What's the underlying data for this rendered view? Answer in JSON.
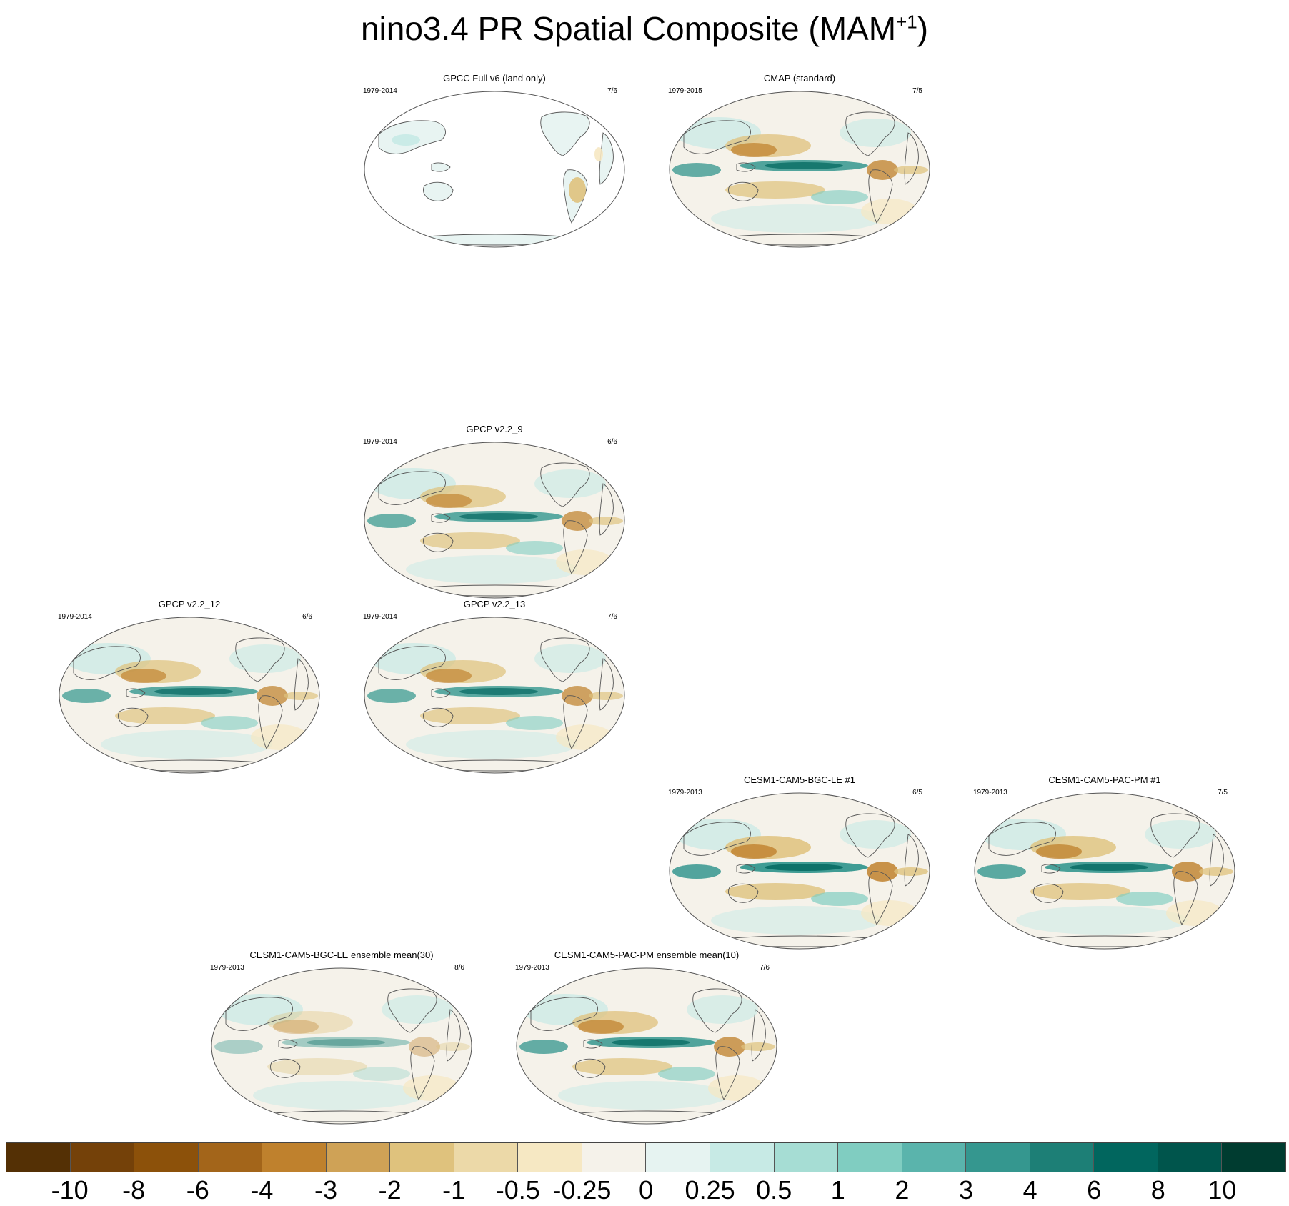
{
  "figure": {
    "title": "nino3.4 PR Spatial Composite (MAM",
    "title_sup": "+1",
    "title_end": ")"
  },
  "panels": [
    {
      "id": "gpcc",
      "title": "GPCC Full v6 (land only)",
      "years": "1979-2014",
      "ratio": "7/6",
      "land_only": true,
      "pattern": 0.15
    },
    {
      "id": "cmap",
      "title": "CMAP (standard)",
      "years": "1979-2015",
      "ratio": "7/5",
      "land_only": false,
      "pattern": 0.9
    },
    {
      "id": "gpcp9",
      "title": "GPCP v2.2_9",
      "years": "1979-2014",
      "ratio": "6/6",
      "land_only": false,
      "pattern": 0.85
    },
    {
      "id": "gpcp12",
      "title": "GPCP v2.2_12",
      "years": "1979-2014",
      "ratio": "6/6",
      "land_only": false,
      "pattern": 0.85
    },
    {
      "id": "gpcp13",
      "title": "GPCP v2.2_13",
      "years": "1979-2014",
      "ratio": "7/6",
      "land_only": false,
      "pattern": 0.85
    },
    {
      "id": "bgcle1",
      "title": "CESM1-CAM5-BGC-LE #1",
      "years": "1979-2013",
      "ratio": "6/5",
      "land_only": false,
      "pattern": 1.0
    },
    {
      "id": "pacpm1",
      "title": "CESM1-CAM5-PAC-PM #1",
      "years": "1979-2013",
      "ratio": "7/5",
      "land_only": false,
      "pattern": 0.95
    },
    {
      "id": "bgcle_em",
      "title": "CESM1-CAM5-BGC-LE ensemble mean(30)",
      "years": "1979-2013",
      "ratio": "8/6",
      "land_only": false,
      "pattern": 0.45
    },
    {
      "id": "pacpm_em",
      "title": "CESM1-CAM5-PAC-PM ensemble mean(10)",
      "years": "1979-2013",
      "ratio": "7/6",
      "land_only": false,
      "pattern": 0.9
    }
  ],
  "colorbar": {
    "colors": [
      "#543005",
      "#744109",
      "#8c510a",
      "#a3651a",
      "#bf812d",
      "#cfa256",
      "#dfc27d",
      "#ecd9a8",
      "#f6e8c3",
      "#f5f2ea",
      "#e6f3f1",
      "#c7eae5",
      "#a6ddd4",
      "#80cdc1",
      "#5ab4ac",
      "#35978f",
      "#1d7f76",
      "#01665e",
      "#00554c",
      "#003c30"
    ],
    "labels": [
      "-10",
      "-8",
      "-6",
      "-4",
      "-3",
      "-2",
      "-1",
      "-0.5",
      "-0.25",
      "0",
      "0.25",
      "0.5",
      "1",
      "2",
      "3",
      "4",
      "6",
      "8",
      "10"
    ]
  }
}
